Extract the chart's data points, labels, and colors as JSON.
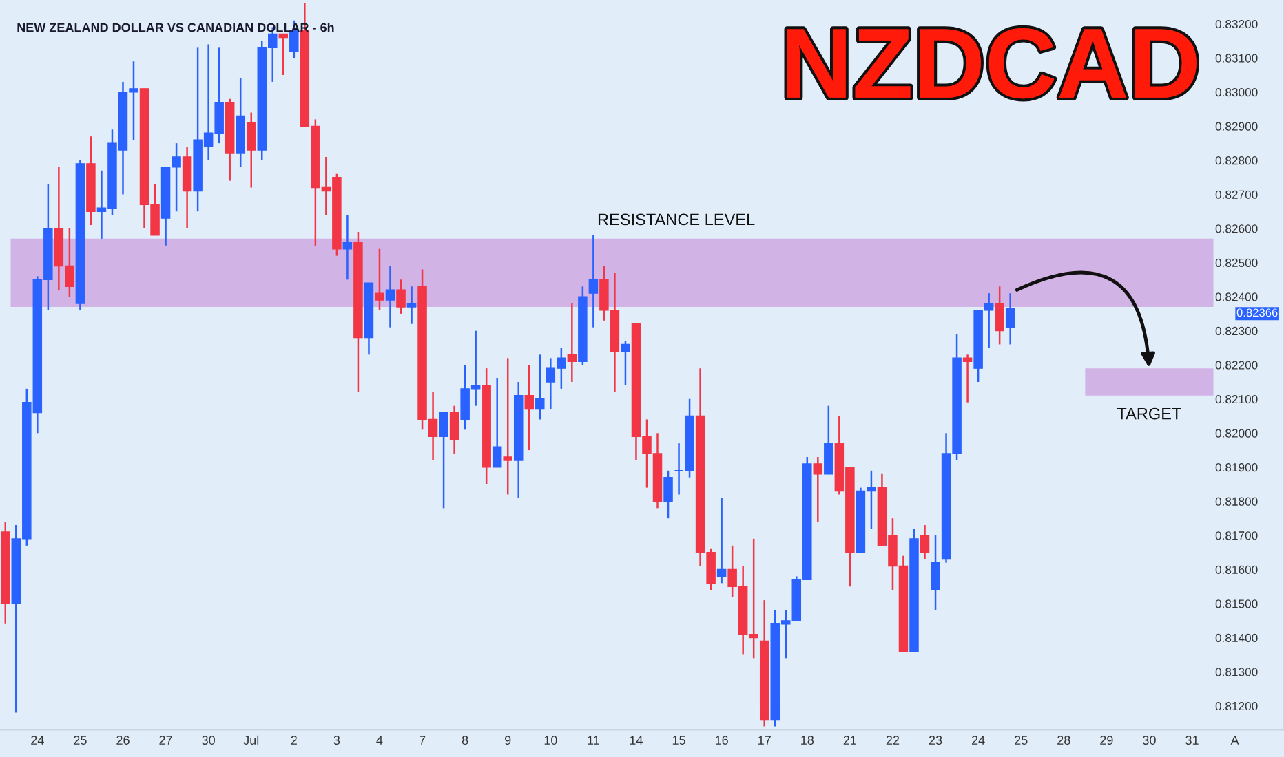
{
  "chart_data": {
    "type": "candlestick",
    "title": "NEW ZEALAND DOLLAR VS CANADIAN DOLLAR - 6h",
    "subtitle": "NZDCAD",
    "categories": [
      null,
      null,
      null,
      "24",
      null,
      null,
      null,
      "25",
      null,
      null,
      null,
      "26",
      null,
      null,
      null,
      "27",
      null,
      null,
      null,
      "30",
      null,
      null,
      null,
      "Jul",
      null,
      null,
      null,
      "2",
      null,
      null,
      null,
      "3",
      null,
      null,
      null,
      "4",
      null,
      null,
      null,
      "7",
      null,
      null,
      null,
      "8",
      null,
      null,
      null,
      "9",
      null,
      null,
      null,
      "10",
      null,
      null,
      null,
      "11",
      null,
      null,
      null,
      "14",
      null,
      null,
      null,
      "15",
      null,
      null,
      null,
      "16",
      null,
      null,
      null,
      "17",
      null,
      null,
      null,
      "18",
      null,
      null,
      null,
      "21",
      null,
      null,
      null,
      "22",
      null,
      null,
      null,
      "23",
      null,
      null,
      null,
      "24",
      null,
      null,
      null,
      "25",
      null,
      null,
      null,
      "28",
      null,
      null,
      null,
      "29",
      null,
      null,
      null,
      "30",
      null,
      null,
      null,
      "31",
      null,
      null,
      null,
      "A"
    ],
    "ohlc": [
      [
        0.8171,
        0.8174,
        0.8144,
        0.815
      ],
      [
        0.815,
        0.8173,
        0.8118,
        0.8169
      ],
      [
        0.8169,
        0.8213,
        0.8167,
        0.8209
      ],
      [
        0.8206,
        0.8246,
        0.82,
        0.8245
      ],
      [
        0.8245,
        0.8273,
        0.8236,
        0.826
      ],
      [
        0.826,
        0.8278,
        0.8242,
        0.8249
      ],
      [
        0.8249,
        0.826,
        0.824,
        0.8243
      ],
      [
        0.8238,
        0.828,
        0.8236,
        0.8279
      ],
      [
        0.8279,
        0.8287,
        0.8261,
        0.8265
      ],
      [
        0.8265,
        0.8277,
        0.8257,
        0.8266
      ],
      [
        0.8266,
        0.8289,
        0.8264,
        0.8285
      ],
      [
        0.8283,
        0.8303,
        0.827,
        0.83
      ],
      [
        0.83,
        0.8309,
        0.8286,
        0.8301
      ],
      [
        0.8301,
        0.8301,
        0.826,
        0.8267
      ],
      [
        0.8267,
        0.8273,
        0.8258,
        0.8258
      ],
      [
        0.8263,
        0.8278,
        0.8255,
        0.8278
      ],
      [
        0.8278,
        0.8285,
        0.8265,
        0.8281
      ],
      [
        0.8281,
        0.8284,
        0.826,
        0.8271
      ],
      [
        0.8271,
        0.8313,
        0.8265,
        0.8286
      ],
      [
        0.8284,
        0.8314,
        0.828,
        0.8288
      ],
      [
        0.8288,
        0.8313,
        0.8285,
        0.8297
      ],
      [
        0.8297,
        0.8298,
        0.8274,
        0.8282
      ],
      [
        0.8282,
        0.8304,
        0.8278,
        0.8293
      ],
      [
        0.8291,
        0.8294,
        0.8272,
        0.8283
      ],
      [
        0.8283,
        0.8315,
        0.828,
        0.8313
      ],
      [
        0.8313,
        0.8319,
        0.8303,
        0.8317
      ],
      [
        0.8317,
        0.8317,
        0.8305,
        0.8316
      ],
      [
        0.8312,
        0.8321,
        0.831,
        0.8318
      ],
      [
        0.8318,
        0.8326,
        0.829,
        0.829
      ],
      [
        0.829,
        0.8292,
        0.8255,
        0.8272
      ],
      [
        0.8272,
        0.8281,
        0.8264,
        0.8271
      ],
      [
        0.8275,
        0.8276,
        0.8252,
        0.8254
      ],
      [
        0.8254,
        0.8264,
        0.8245,
        0.8256
      ],
      [
        0.8256,
        0.8259,
        0.8212,
        0.8228
      ],
      [
        0.8228,
        0.8244,
        0.8223,
        0.8244
      ],
      [
        0.8241,
        0.8254,
        0.8236,
        0.8239
      ],
      [
        0.8239,
        0.8249,
        0.8231,
        0.8242
      ],
      [
        0.8242,
        0.8245,
        0.8235,
        0.8237
      ],
      [
        0.8237,
        0.8243,
        0.8232,
        0.8238
      ],
      [
        0.8243,
        0.8248,
        0.8201,
        0.8204
      ],
      [
        0.8204,
        0.8212,
        0.8192,
        0.8199
      ],
      [
        0.8199,
        0.8206,
        0.8178,
        0.8206
      ],
      [
        0.8206,
        0.8208,
        0.8194,
        0.8198
      ],
      [
        0.8204,
        0.822,
        0.8201,
        0.8213
      ],
      [
        0.8213,
        0.823,
        0.8208,
        0.8214
      ],
      [
        0.8214,
        0.8219,
        0.8185,
        0.819
      ],
      [
        0.819,
        0.8216,
        0.819,
        0.8196
      ],
      [
        0.8193,
        0.8222,
        0.8182,
        0.8192
      ],
      [
        0.8192,
        0.8215,
        0.8181,
        0.8211
      ],
      [
        0.8211,
        0.822,
        0.8195,
        0.8207
      ],
      [
        0.8207,
        0.8223,
        0.8204,
        0.821
      ],
      [
        0.8215,
        0.8222,
        0.8207,
        0.8219
      ],
      [
        0.8219,
        0.8225,
        0.8213,
        0.8222
      ],
      [
        0.8223,
        0.8238,
        0.8215,
        0.8221
      ],
      [
        0.8221,
        0.8243,
        0.822,
        0.824
      ],
      [
        0.8241,
        0.8258,
        0.8231,
        0.8245
      ],
      [
        0.8245,
        0.8249,
        0.8233,
        0.8236
      ],
      [
        0.8236,
        0.8247,
        0.8212,
        0.8224
      ],
      [
        0.8224,
        0.8227,
        0.8214,
        0.8226
      ],
      [
        0.8232,
        0.8232,
        0.8192,
        0.8199
      ],
      [
        0.8199,
        0.8204,
        0.8184,
        0.8194
      ],
      [
        0.8194,
        0.82,
        0.8178,
        0.818
      ],
      [
        0.818,
        0.8189,
        0.8175,
        0.8187
      ],
      [
        0.8189,
        0.8197,
        0.8182,
        0.8189
      ],
      [
        0.8189,
        0.821,
        0.8187,
        0.8205
      ],
      [
        0.8205,
        0.8219,
        0.8161,
        0.8165
      ],
      [
        0.8165,
        0.8166,
        0.8154,
        0.8156
      ],
      [
        0.8158,
        0.8181,
        0.8156,
        0.816
      ],
      [
        0.816,
        0.8167,
        0.8152,
        0.8155
      ],
      [
        0.8155,
        0.8161,
        0.8135,
        0.8141
      ],
      [
        0.8141,
        0.8169,
        0.8134,
        0.814
      ],
      [
        0.8139,
        0.8151,
        0.8114,
        0.8116
      ],
      [
        0.8116,
        0.8148,
        0.8114,
        0.8144
      ],
      [
        0.8144,
        0.8148,
        0.8134,
        0.8145
      ],
      [
        0.8145,
        0.8158,
        0.8145,
        0.8157
      ],
      [
        0.8157,
        0.8193,
        0.8157,
        0.8191
      ],
      [
        0.8191,
        0.8193,
        0.8174,
        0.8188
      ],
      [
        0.8188,
        0.8208,
        0.8188,
        0.8197
      ],
      [
        0.8197,
        0.8205,
        0.8182,
        0.8183
      ],
      [
        0.819,
        0.819,
        0.8155,
        0.8165
      ],
      [
        0.8165,
        0.8184,
        0.8165,
        0.8183
      ],
      [
        0.8183,
        0.8189,
        0.8172,
        0.8184
      ],
      [
        0.8184,
        0.8188,
        0.8167,
        0.8167
      ],
      [
        0.817,
        0.8175,
        0.8154,
        0.8161
      ],
      [
        0.8161,
        0.8164,
        0.8136,
        0.8136
      ],
      [
        0.8136,
        0.8172,
        0.8136,
        0.8169
      ],
      [
        0.817,
        0.8173,
        0.8163,
        0.8165
      ],
      [
        0.8154,
        0.817,
        0.8148,
        0.8162
      ],
      [
        0.8163,
        0.82,
        0.8162,
        0.8194
      ],
      [
        0.8194,
        0.8229,
        0.8192,
        0.8222
      ],
      [
        0.8222,
        0.8223,
        0.8209,
        0.8221
      ],
      [
        0.8219,
        0.8236,
        0.8215,
        0.8236
      ],
      [
        0.8236,
        0.8241,
        0.8225,
        0.8238
      ],
      [
        0.8238,
        0.8243,
        0.8226,
        0.823
      ],
      [
        0.8231,
        0.8241,
        0.8226,
        0.82366
      ],
      null,
      null,
      null,
      null,
      null,
      null,
      null,
      null,
      null,
      null,
      null,
      null,
      null,
      null,
      null,
      null,
      null,
      null,
      null,
      null,
      null
    ],
    "colors": [
      "#f23645",
      "#2962ff",
      "#2962ff",
      "#2962ff",
      "#2962ff",
      "#f23645",
      "#f23645",
      "#2962ff",
      "#f23645",
      "#2962ff",
      "#2962ff",
      "#2962ff",
      "#2962ff",
      "#f23645",
      "#f23645",
      "#2962ff",
      "#2962ff",
      "#f23645",
      "#2962ff",
      "#2962ff",
      "#2962ff",
      "#f23645",
      "#2962ff",
      "#f23645",
      "#2962ff",
      "#2962ff",
      "#f23645",
      "#2962ff",
      "#f23645",
      "#f23645",
      "#f23645",
      "#f23645",
      "#2962ff",
      "#f23645",
      "#2962ff",
      "#f23645",
      "#2962ff",
      "#f23645",
      "#2962ff",
      "#f23645",
      "#f23645",
      "#2962ff",
      "#f23645",
      "#2962ff",
      "#2962ff",
      "#f23645",
      "#2962ff",
      "#f23645",
      "#2962ff",
      "#f23645",
      "#2962ff",
      "#2962ff",
      "#2962ff",
      "#f23645",
      "#2962ff",
      "#2962ff",
      "#f23645",
      "#f23645",
      "#2962ff",
      "#f23645",
      "#f23645",
      "#f23645",
      "#2962ff",
      "#2962ff",
      "#2962ff",
      "#f23645",
      "#f23645",
      "#2962ff",
      "#f23645",
      "#f23645",
      "#f23645",
      "#f23645",
      "#2962ff",
      "#2962ff",
      "#2962ff",
      "#2962ff",
      "#f23645",
      "#2962ff",
      "#f23645",
      "#f23645",
      "#2962ff",
      "#2962ff",
      "#f23645",
      "#f23645",
      "#f23645",
      "#2962ff",
      "#f23645",
      "#2962ff",
      "#2962ff",
      "#2962ff",
      "#f23645",
      "#2962ff",
      "#2962ff",
      "#f23645",
      "#2962ff",
      null,
      null,
      null,
      null,
      null,
      null,
      null,
      null,
      null,
      null,
      null,
      null,
      null,
      null,
      null,
      null,
      null,
      null,
      null,
      null,
      null
    ],
    "ylim": [
      0.8113,
      0.8327
    ],
    "yticks": [
      {
        "value": 0.812,
        "label": "0.81200"
      },
      {
        "value": 0.813,
        "label": "0.81300"
      },
      {
        "value": 0.814,
        "label": "0.81400"
      },
      {
        "value": 0.815,
        "label": "0.81500"
      },
      {
        "value": 0.816,
        "label": "0.81600"
      },
      {
        "value": 0.817,
        "label": "0.81700"
      },
      {
        "value": 0.818,
        "label": "0.81800"
      },
      {
        "value": 0.819,
        "label": "0.81900"
      },
      {
        "value": 0.82,
        "label": "0.82000"
      },
      {
        "value": 0.821,
        "label": "0.82100"
      },
      {
        "value": 0.822,
        "label": "0.82200"
      },
      {
        "value": 0.823,
        "label": "0.82300"
      },
      {
        "value": 0.824,
        "label": "0.82400"
      },
      {
        "value": 0.825,
        "label": "0.82500"
      },
      {
        "value": 0.826,
        "label": "0.82600"
      },
      {
        "value": 0.827,
        "label": "0.82700"
      },
      {
        "value": 0.828,
        "label": "0.82800"
      },
      {
        "value": 0.829,
        "label": "0.82900"
      },
      {
        "value": 0.83,
        "label": "0.83000"
      },
      {
        "value": 0.831,
        "label": "0.83100"
      },
      {
        "value": 0.832,
        "label": "0.83200"
      }
    ],
    "bands": [
      {
        "axis": "y",
        "from": 0.8237,
        "to": 0.8257,
        "label": "RESISTANCE LEVEL",
        "color": "#cfa8e3"
      },
      {
        "axis": "y",
        "from": 0.8211,
        "to": 0.8219,
        "label": "TARGET",
        "color": "#cfa8e3"
      }
    ],
    "annotations": [
      "0.82366"
    ],
    "grid": false,
    "legend": false
  }
}
